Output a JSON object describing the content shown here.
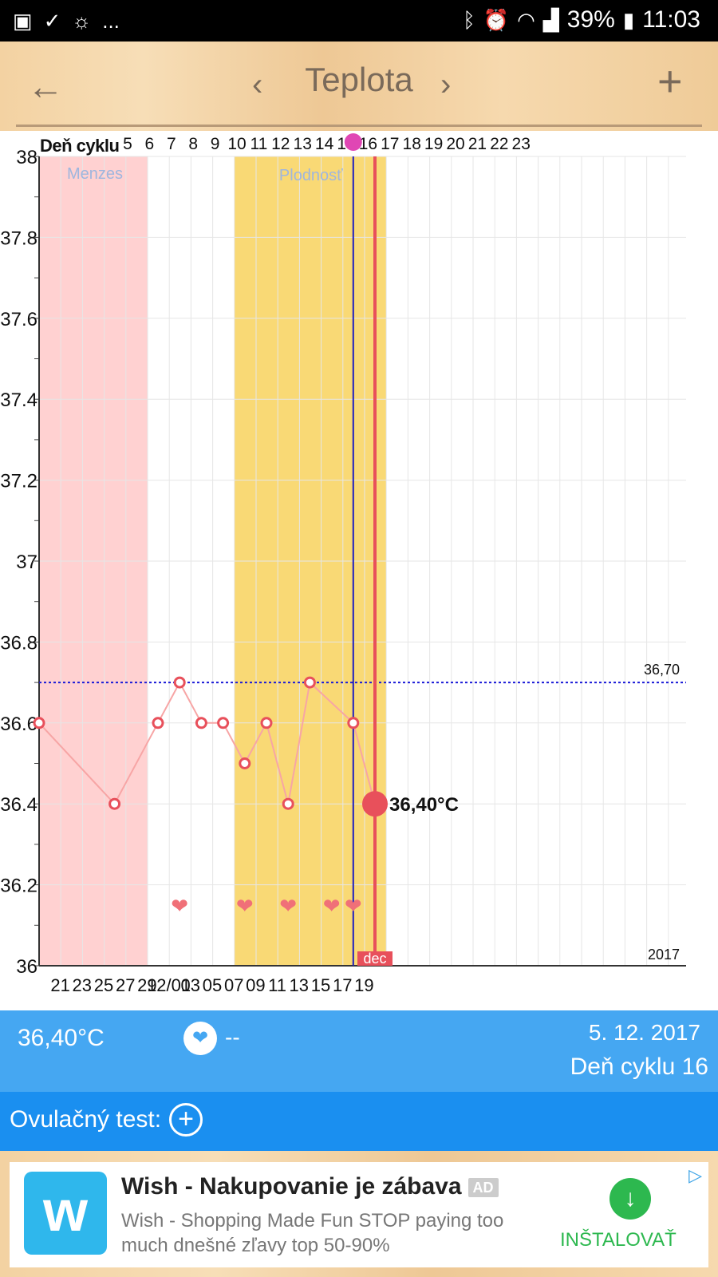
{
  "statusbar": {
    "left_icons": [
      "facebook-icon",
      "check-icon",
      "weather-icon"
    ],
    "more": "...",
    "battery": "39%",
    "time": "11:03"
  },
  "header": {
    "title": "Teplota",
    "back": "←",
    "prev": "‹",
    "next": "›",
    "add": "+"
  },
  "chart_data": {
    "type": "line",
    "cycle_label": "Deň cyklu",
    "cycle_days": [
      "5",
      "6",
      "7",
      "8",
      "9",
      "10",
      "11",
      "12",
      "13",
      "14",
      "15",
      "16",
      "17",
      "18",
      "19",
      "20",
      "21",
      "22",
      "23"
    ],
    "x_tick_labels": [
      "21",
      "23",
      "25",
      "27",
      "29",
      "12/01",
      "03",
      "05",
      "07",
      "09",
      "11",
      "13",
      "15",
      "17",
      "19"
    ],
    "y_tick_labels": [
      "36",
      "36.2",
      "36.4",
      "36.6",
      "36.8",
      "37",
      "37.2",
      "37.4",
      "37.6",
      "37.8",
      "38"
    ],
    "ylim": [
      36,
      38
    ],
    "series": [
      {
        "x": [
          "2017-11-20",
          "2017-11-23",
          "2017-11-25",
          "2017-11-26",
          "2017-11-27",
          "2017-11-28",
          "2017-11-29",
          "2017-11-30",
          "2017-12-01",
          "2017-12-02",
          "2017-12-04",
          "2017-12-05"
        ],
        "values": [
          36.6,
          36.4,
          36.6,
          36.7,
          36.6,
          36.6,
          36.5,
          36.6,
          36.4,
          36.7,
          36.6,
          36.4
        ]
      }
    ],
    "coverline_value": 36.7,
    "coverline_label": "36,70",
    "menses_label": "Menzes",
    "menses_range": [
      "2017-11-20",
      "2017-11-25"
    ],
    "fertile_label": "Plodnosť",
    "fertile_range": [
      "2017-11-29",
      "2017-12-05"
    ],
    "ovulation_date": "2017-12-04",
    "intercourse_dates": [
      "2017-11-26",
      "2017-11-29",
      "2017-12-01",
      "2017-12-03",
      "2017-12-04"
    ],
    "selected_date": "2017-12-05",
    "selected_label": "36,40°C",
    "month_label": "dec",
    "year_label": "2017",
    "grid": true,
    "colors": {
      "menses": "#ffd1d1",
      "fertile": "#f9d975",
      "line": "#f7a5a5",
      "marker": "#e8505b",
      "coverline": "#1a1ad8",
      "ovulation_line": "#1f1fbf",
      "heart": "#f07078"
    }
  },
  "info": {
    "temp": "36,40°C",
    "heart_icon": "heart-icon",
    "intercourse": "--",
    "date": "5. 12. 2017",
    "cycle_day": "Deň cyklu 16"
  },
  "ovulation": {
    "label": "Ovulačný test:",
    "add_icon": "plus-circle-icon"
  },
  "ad": {
    "title": "Wish - Nakupovanie je zábava",
    "badge": "AD",
    "description": "Wish - Shopping Made Fun STOP paying too much dnešné zľavy top 50-90%",
    "install": "INŠTALOVAŤ",
    "logo_glyph": "w"
  }
}
